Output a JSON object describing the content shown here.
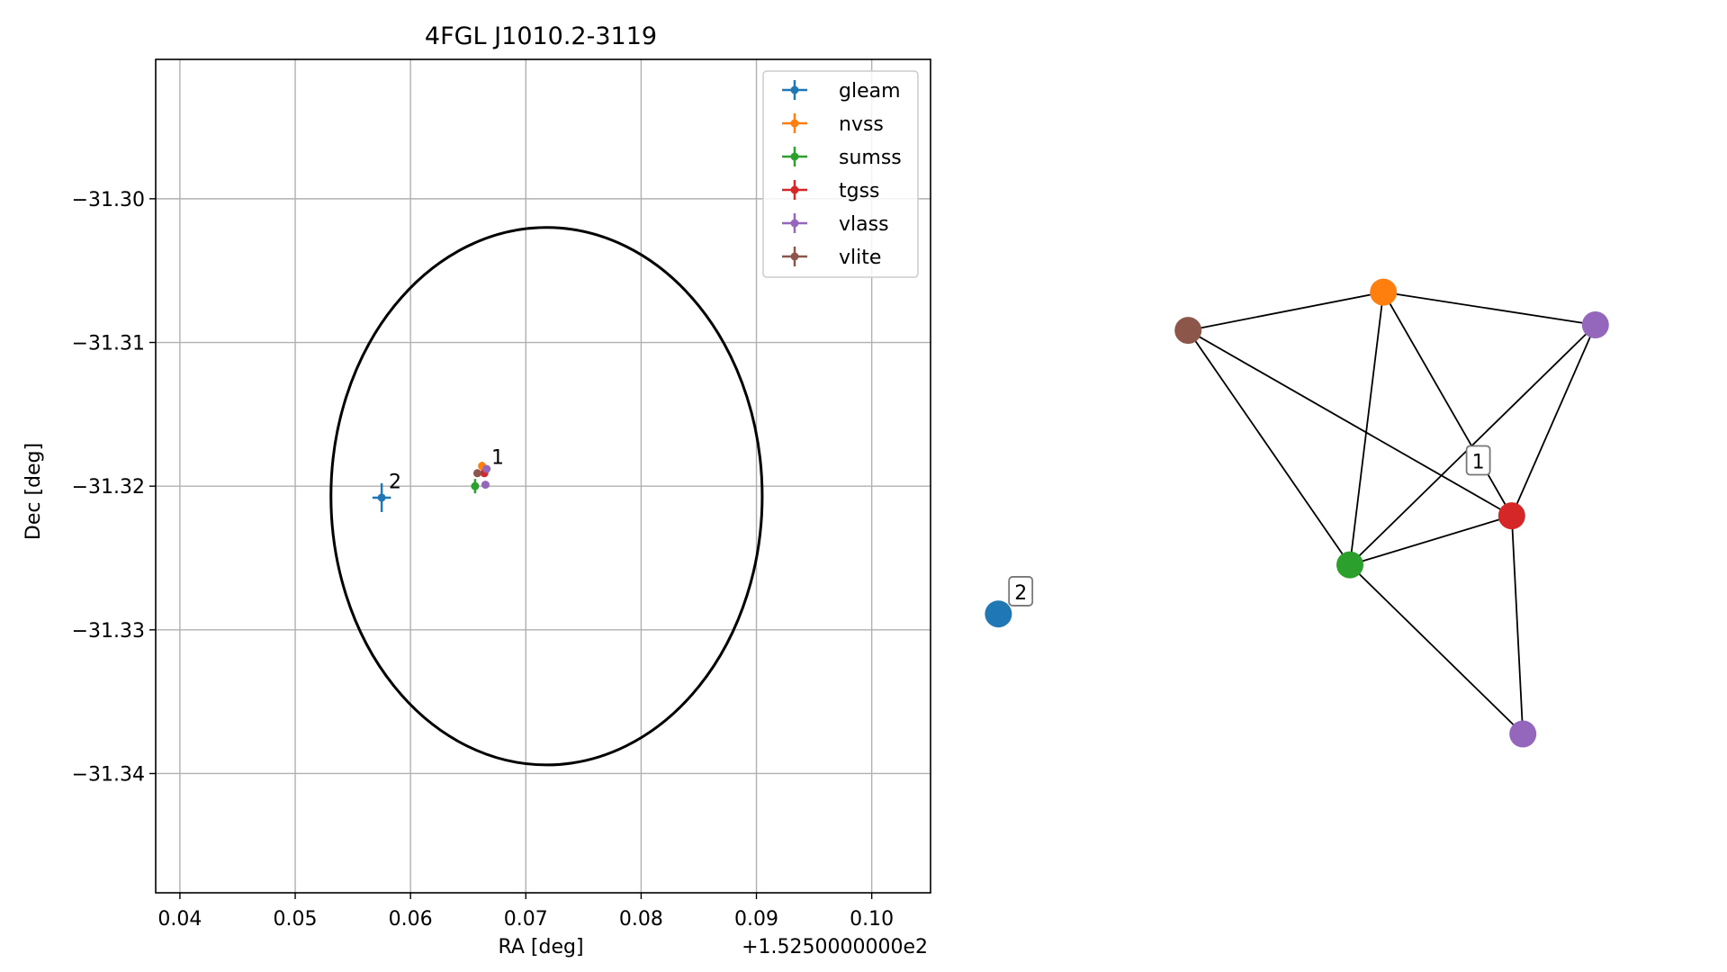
{
  "chart_data": [
    {
      "type": "scatter",
      "title": "4FGL J1010.2-3119",
      "xlabel": "RA [deg]",
      "ylabel": "Dec [deg]",
      "x_offset_label": "+1.5250000000e2",
      "xlim": [
        0.0379,
        0.1051
      ],
      "ylim": [
        -31.3483,
        -31.2903
      ],
      "x_ticks": [
        0.04,
        0.05,
        0.06,
        0.07,
        0.08,
        0.09,
        0.1
      ],
      "x_tick_labels": [
        "0.04",
        "0.05",
        "0.06",
        "0.07",
        "0.08",
        "0.09",
        "0.10"
      ],
      "y_ticks": [
        -31.3,
        -31.31,
        -31.32,
        -31.33,
        -31.34
      ],
      "y_tick_labels": [
        "−31.30",
        "−31.31",
        "−31.32",
        "−31.33",
        "−31.34"
      ],
      "grid": true,
      "legend_position": "top-right",
      "circle": {
        "ra": 0.0718,
        "dec": -31.3207,
        "radius_deg": 0.0187,
        "color": "#000000"
      },
      "series": [
        {
          "name": "gleam",
          "color": "#1f77b4",
          "points": [
            {
              "ra": 0.0575,
              "dec": -31.3208,
              "ra_err": 0.0008,
              "dec_err": 0.001
            }
          ]
        },
        {
          "name": "nvss",
          "color": "#ff7f0e",
          "points": [
            {
              "ra": 0.0662,
              "dec": -31.3186,
              "ra_err": 0.0002,
              "dec_err": 0.0003
            }
          ]
        },
        {
          "name": "sumss",
          "color": "#2ca02c",
          "points": [
            {
              "ra": 0.0656,
              "dec": -31.32,
              "ra_err": 0.0003,
              "dec_err": 0.0005
            }
          ]
        },
        {
          "name": "tgss",
          "color": "#d62728",
          "points": [
            {
              "ra": 0.0664,
              "dec": -31.3191,
              "ra_err": 0.0001,
              "dec_err": 0.0001
            }
          ]
        },
        {
          "name": "vlass",
          "color": "#9467bd",
          "points": [
            {
              "ra": 0.0666,
              "dec": -31.3188,
              "ra_err": 0.0001,
              "dec_err": 0.0001
            },
            {
              "ra": 0.0665,
              "dec": -31.3199,
              "ra_err": 0.0001,
              "dec_err": 0.0001
            }
          ]
        },
        {
          "name": "vlite",
          "color": "#8c564b",
          "points": [
            {
              "ra": 0.0658,
              "dec": -31.3191,
              "ra_err": 0.0003,
              "dec_err": 0.0002
            }
          ]
        }
      ],
      "annotations": [
        {
          "text": "1",
          "ra": 0.0667,
          "dec": -31.3187
        },
        {
          "text": "2",
          "ra": 0.0578,
          "dec": -31.3204
        }
      ]
    },
    {
      "type": "network",
      "nodes": [
        {
          "id": "gleam",
          "color": "#1f77b4",
          "x": 0.02,
          "y": 0.3
        },
        {
          "id": "nvss",
          "color": "#ff7f0e",
          "x": 0.71,
          "y": 0.89
        },
        {
          "id": "sumss",
          "color": "#2ca02c",
          "x": 0.65,
          "y": 0.39
        },
        {
          "id": "tgss",
          "color": "#d62728",
          "x": 0.94,
          "y": 0.48
        },
        {
          "id": "vlass_a",
          "color": "#9467bd",
          "x": 1.09,
          "y": 0.83
        },
        {
          "id": "vlass_b",
          "color": "#9467bd",
          "x": 0.96,
          "y": 0.08
        },
        {
          "id": "vlite",
          "color": "#8c564b",
          "x": 0.36,
          "y": 0.82
        }
      ],
      "edges": [
        [
          "nvss",
          "vlite"
        ],
        [
          "nvss",
          "vlass_a"
        ],
        [
          "nvss",
          "sumss"
        ],
        [
          "nvss",
          "tgss"
        ],
        [
          "vlite",
          "sumss"
        ],
        [
          "vlite",
          "tgss"
        ],
        [
          "vlass_a",
          "sumss"
        ],
        [
          "vlass_a",
          "tgss"
        ],
        [
          "sumss",
          "tgss"
        ],
        [
          "sumss",
          "vlass_b"
        ],
        [
          "tgss",
          "vlass_b"
        ]
      ],
      "labels": [
        {
          "text": "1",
          "x": 0.88,
          "y": 0.58
        },
        {
          "text": "2",
          "x": 0.06,
          "y": 0.34
        }
      ]
    }
  ]
}
